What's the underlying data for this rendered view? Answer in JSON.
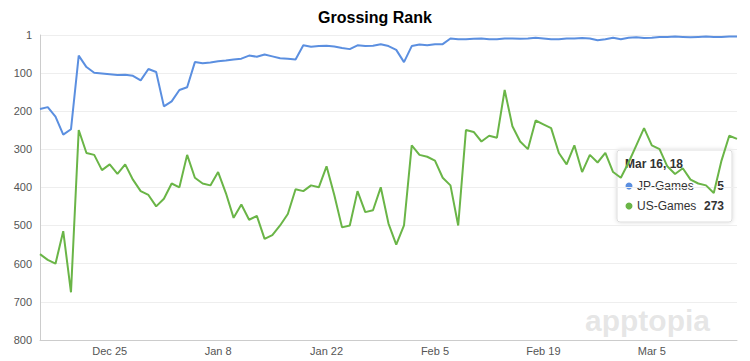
{
  "chart_data": {
    "type": "line",
    "title": "Grossing Rank",
    "categories": [
      null,
      null,
      null,
      null,
      null,
      null,
      null,
      null,
      null,
      "Dec 25",
      null,
      null,
      null,
      null,
      null,
      null,
      null,
      null,
      null,
      null,
      null,
      null,
      null,
      "Jan 8",
      null,
      null,
      null,
      null,
      null,
      null,
      null,
      null,
      null,
      null,
      null,
      null,
      null,
      "Jan 22",
      null,
      null,
      null,
      null,
      null,
      null,
      null,
      null,
      null,
      null,
      null,
      null,
      null,
      "Feb 5",
      null,
      null,
      null,
      null,
      null,
      null,
      null,
      null,
      null,
      null,
      null,
      null,
      null,
      "Feb 19",
      null,
      null,
      null,
      null,
      null,
      null,
      null,
      null,
      null,
      null,
      null,
      null,
      null,
      "Mar 5",
      null,
      null,
      null,
      null,
      null,
      null,
      null,
      null,
      null,
      null,
      null
    ],
    "series": [
      {
        "name": "JP-Games",
        "color": "#5b8fe0",
        "values": [
          195,
          190,
          215,
          262,
          248,
          55,
          85,
          100,
          102,
          104,
          106,
          105,
          108,
          120,
          90,
          98,
          188,
          175,
          145,
          138,
          72,
          75,
          73,
          70,
          68,
          65,
          63,
          55,
          58,
          52,
          57,
          62,
          63,
          65,
          28,
          32,
          30,
          29,
          31,
          35,
          38,
          28,
          30,
          29,
          25,
          30,
          40,
          72,
          30,
          26,
          28,
          25,
          25,
          10,
          12,
          12,
          11,
          10,
          12,
          12,
          10,
          10,
          11,
          10,
          8,
          10,
          12,
          12,
          10,
          10,
          9,
          10,
          15,
          12,
          8,
          12,
          8,
          7,
          9,
          8,
          6,
          6,
          5,
          6,
          7,
          6,
          5,
          6,
          6,
          5,
          5
        ]
      },
      {
        "name": "US-Games",
        "color": "#6ab547",
        "values": [
          575,
          590,
          600,
          515,
          675,
          250,
          310,
          315,
          355,
          340,
          365,
          340,
          380,
          410,
          420,
          450,
          430,
          390,
          400,
          315,
          375,
          390,
          395,
          360,
          415,
          480,
          445,
          485,
          475,
          535,
          525,
          500,
          470,
          405,
          410,
          395,
          400,
          345,
          420,
          505,
          500,
          410,
          465,
          460,
          400,
          495,
          550,
          500,
          290,
          315,
          320,
          330,
          375,
          395,
          500,
          250,
          255,
          280,
          265,
          270,
          145,
          240,
          280,
          300,
          225,
          235,
          245,
          310,
          340,
          290,
          360,
          315,
          335,
          310,
          360,
          375,
          335,
          290,
          245,
          290,
          300,
          345,
          365,
          350,
          380,
          390,
          395,
          415,
          330,
          265,
          273
        ]
      }
    ],
    "ylim": [
      1,
      800
    ],
    "yticks": [
      1,
      100,
      200,
      300,
      400,
      500,
      600,
      700,
      800
    ],
    "grid": true,
    "tooltip": {
      "title": "Mar 16, 18",
      "rows": [
        {
          "name": "JP-Games",
          "value": 5
        },
        {
          "name": "US-Games",
          "value": 273
        }
      ]
    },
    "watermark": "apptopia"
  }
}
